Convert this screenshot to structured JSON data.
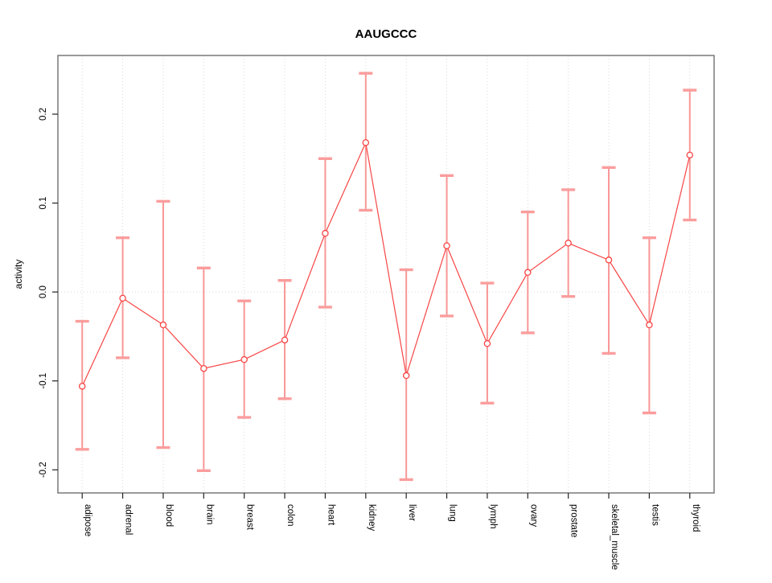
{
  "title": "AAUGCCC",
  "chart_data": {
    "type": "line",
    "title": "AAUGCCC",
    "xlabel": "",
    "ylabel": "activity",
    "categories": [
      "adipose",
      "adrenal",
      "blood",
      "brain",
      "breast",
      "colon",
      "heart",
      "kidney",
      "liver",
      "lung",
      "lymph",
      "ovary",
      "prostate",
      "skeletal_muscle",
      "testis",
      "thyroid"
    ],
    "series": [
      {
        "name": "activity",
        "values": [
          -0.106,
          -0.007,
          -0.037,
          -0.086,
          -0.076,
          -0.054,
          0.066,
          0.168,
          -0.094,
          0.052,
          -0.058,
          0.022,
          0.055,
          0.036,
          -0.037,
          0.154
        ],
        "lower": [
          -0.177,
          -0.074,
          -0.175,
          -0.201,
          -0.141,
          -0.12,
          -0.017,
          0.092,
          -0.211,
          -0.027,
          -0.125,
          -0.046,
          -0.005,
          -0.069,
          -0.136,
          0.081
        ],
        "upper": [
          -0.033,
          0.061,
          0.102,
          0.027,
          -0.01,
          0.013,
          0.15,
          0.246,
          0.025,
          0.131,
          0.01,
          0.09,
          0.115,
          0.14,
          0.061,
          0.227
        ]
      }
    ],
    "ylim": [
      -0.226,
      0.266
    ],
    "yticks": [
      -0.2,
      -0.1,
      0.0,
      0.1,
      0.2
    ],
    "ytick_labels": [
      "-0.2",
      "-0.1",
      "0.0",
      "0.1",
      "0.2"
    ],
    "grid": "dotted vertical line at each category; dotted horizontal line at y=0",
    "legend": "none",
    "point_style": "open-circle",
    "error_bars": true,
    "colors": {
      "line": "#f84545",
      "point": "#f84545",
      "error_bar": "#f98585",
      "error_cap": "#fb9d9d",
      "grid": "#d9d9d9",
      "box": "#6e6e6e",
      "tick": "#222222",
      "text": "#000000",
      "background": "#ffffff"
    }
  }
}
